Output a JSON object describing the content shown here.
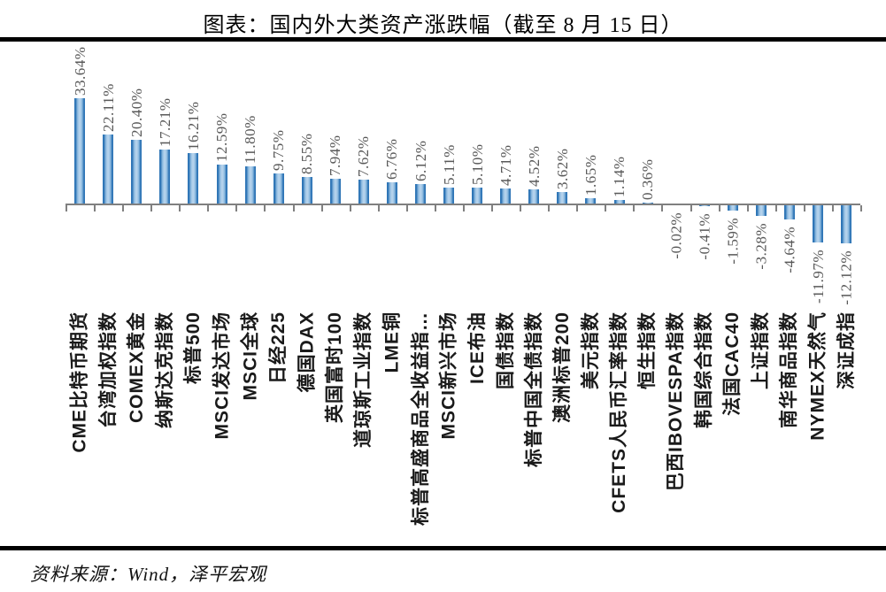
{
  "page": {
    "title": "图表：国内外大类资产涨跌幅（截至 8 月 15 日）",
    "source_note": "资料来源：Wind，泽平宏观"
  },
  "chart_data": {
    "type": "bar",
    "title": "图表：国内外大类资产涨跌幅（截至 8 月 15 日）",
    "value_unit": "%",
    "ylim": [
      -15,
      35
    ],
    "grid": false,
    "legend": "none",
    "orientation": "vertical",
    "label_rotation_degrees": -90,
    "colors": {
      "bar_edge": "#2E75B6",
      "bar_center": "#B4D2EC",
      "axis": "#808080",
      "value_label": "#595959",
      "category_label": "#1a1a1a"
    },
    "categories": [
      "CME比特币期货",
      "台湾加权指数",
      "COMEX黄金",
      "纳斯达克指数",
      "标普500",
      "MSCI发达市场",
      "MSCI全球",
      "日经225",
      "德国DAX",
      "英国富时100",
      "道琼斯工业指数",
      "LME铜",
      "标普高盛商品全收益指…",
      "MSCI新兴市场",
      "ICE布油",
      "国债指数",
      "标普中国全债指数",
      "澳洲标普200",
      "美元指数",
      "CFETS人民币汇率指数",
      "恒生指数",
      "巴西IBOVESPA指数",
      "韩国综合指数",
      "法国CAC40",
      "上证指数",
      "南华商品指数",
      "NYMEX天然气",
      "深证成指"
    ],
    "values": [
      33.64,
      22.11,
      20.4,
      17.21,
      16.21,
      12.59,
      11.8,
      9.75,
      8.55,
      7.94,
      7.62,
      6.76,
      6.12,
      5.11,
      5.1,
      4.71,
      4.52,
      3.62,
      1.65,
      1.14,
      0.36,
      -0.02,
      -0.41,
      -1.59,
      -3.28,
      -4.64,
      -11.97,
      -12.12
    ],
    "value_labels": [
      "33.64%",
      "22.11%",
      "20.40%",
      "17.21%",
      "16.21%",
      "12.59%",
      "11.80%",
      "9.75%",
      "8.55%",
      "7.94%",
      "7.62%",
      "6.76%",
      "6.12%",
      "5.11%",
      "5.10%",
      "4.71%",
      "4.52%",
      "3.62%",
      "1.65%",
      "1.14%",
      "0.36%",
      "-0.02%",
      "-0.41%",
      "-1.59%",
      "-3.28%",
      "-4.64%",
      "-11.97%",
      "-12.12%"
    ]
  }
}
